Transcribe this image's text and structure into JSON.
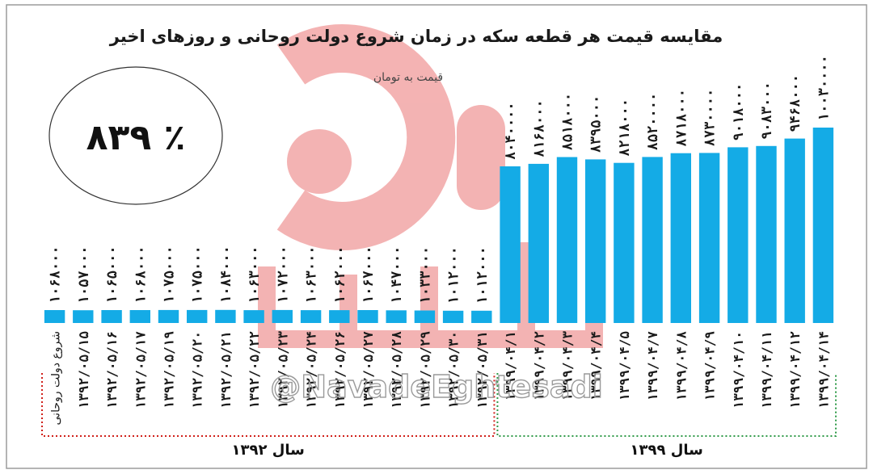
{
  "chart_data": {
    "type": "bar",
    "title": "مقایسه قیمت هر قطعه سکه در زمان شروع دولت روحانی و روزهای اخیر",
    "unit_label": "قیمت به تومان",
    "percent_label": "٪ ۸۳۹",
    "categories": [
      "شروع دولت روحانی",
      "۱۳۹۲/۰۵/۱۵",
      "۱۳۹۲/۰۵/۱۶",
      "۱۳۹۲/۰۵/۱۷",
      "۱۳۹۲/۰۵/۱۹",
      "۱۳۹۲/۰۵/۲۰",
      "۱۳۹۲/۰۵/۲۱",
      "۱۳۹۲/۰۵/۲۲",
      "۱۳۹۲/۰۵/۲۳",
      "۱۳۹۲/۰۵/۲۴",
      "۱۳۹۲/۰۵/۲۶",
      "۱۳۹۲/۰۵/۲۷",
      "۱۳۹۲/۰۵/۲۸",
      "۱۳۹۲/۰۵/۲۹",
      "۱۳۹۲/۰۵/۳۰",
      "۱۳۹۲/۰۵/۳۱",
      "۱۳۹۹/۰۴/۱",
      "۱۳۹۹/۰۴/۲",
      "۱۳۹۹/۰۴/۳",
      "۱۳۹۹/۰۴/۴",
      "۱۳۹۹/۰۴/۵",
      "۱۳۹۹/۰۴/۷",
      "۱۳۹۹/۰۴/۸",
      "۱۳۹۹/۰۴/۹",
      "۱۳۹۹/۰۴/۱۰",
      "۱۳۹۹/۰۴/۱۱",
      "۱۳۹۹/۰۴/۱۲",
      "۱۳۹۹/۰۴/۱۴"
    ],
    "values": [
      1068000,
      1057000,
      1065000,
      1068000,
      1075000,
      1075000,
      1084000,
      1063000,
      1072000,
      1063000,
      1062000,
      1067000,
      1047000,
      1033000,
      1012000,
      1012000,
      8040000,
      8168000,
      8518000,
      8395000,
      8218000,
      8520000,
      8718000,
      8730000,
      9018000,
      9083000,
      9468000,
      10030000
    ],
    "value_labels": [
      "۱۰۶۸۰۰۰",
      "۱۰۵۷۰۰۰",
      "۱۰۶۵۰۰۰",
      "۱۰۶۸۰۰۰",
      "۱۰۷۵۰۰۰",
      "۱۰۷۵۰۰۰",
      "۱۰۸۴۰۰۰",
      "۱۰۶۳۰۰۰",
      "۱۰۷۲۰۰۰",
      "۱۰۶۳۰۰۰",
      "۱۰۶۲۰۰۰",
      "۱۰۶۷۰۰۰",
      "۱۰۴۷۰۰۰",
      "۱۰۳۳۰۰۰",
      "۱۰۱۲۰۰۰",
      "۱۰۱۲۰۰۰",
      "۸۰۴۰۰۰۰",
      "۸۱۶۸۰۰۰",
      "۸۵۱۸۰۰۰",
      "۸۳۹۵۰۰۰",
      "۸۲۱۸۰۰۰",
      "۸۵۲۰۰۰۰",
      "۸۷۱۸۰۰۰",
      "۸۷۳۰۰۰۰",
      "۹۰۱۸۰۰۰",
      "۹۰۸۳۰۰۰",
      "۹۴۶۸۰۰۰",
      "۱۰۰۳۰۰۰۰"
    ],
    "groups": [
      {
        "label": "سال ۱۳۹۲",
        "from": 0,
        "to": 15,
        "color": "#d0201a"
      },
      {
        "label": "سال ۱۳۹۹",
        "from": 16,
        "to": 27,
        "color": "#2f9a48"
      }
    ],
    "bar_color": "#14abe6",
    "watermark_text": "@NavadeEghtesadi",
    "watermark_color": "#f2a6a6",
    "grid": false,
    "legend": "none"
  }
}
